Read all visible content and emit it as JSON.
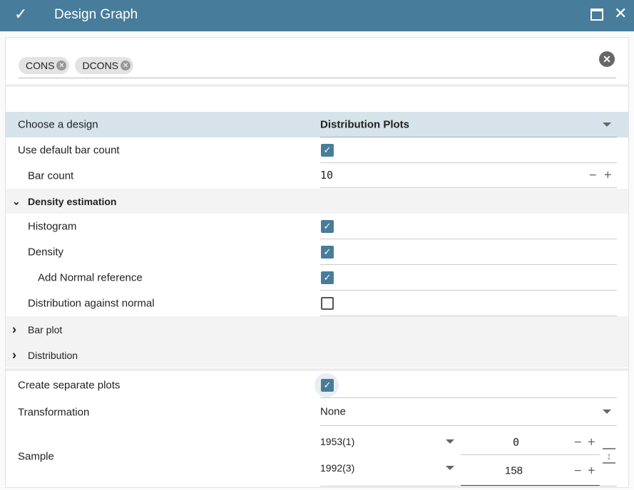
{
  "window": {
    "title": "Design Graph"
  },
  "tags": [
    "CONS",
    "DCONS"
  ],
  "design": {
    "label": "Choose a design",
    "value": "Distribution Plots"
  },
  "use_default_bar_count": {
    "label": "Use default bar count",
    "checked": true
  },
  "bar_count": {
    "label": "Bar count",
    "value": "10"
  },
  "density_section": {
    "label": "Density estimation",
    "expanded": true
  },
  "histogram": {
    "label": "Histogram",
    "checked": true
  },
  "density": {
    "label": "Density",
    "checked": true
  },
  "normal_ref": {
    "label": "Add Normal reference",
    "checked": true
  },
  "dist_normal": {
    "label": "Distribution against normal",
    "checked": false
  },
  "bar_plot": {
    "label": "Bar plot",
    "expanded": false
  },
  "distribution": {
    "label": "Distribution",
    "expanded": false
  },
  "separate": {
    "label": "Create separate plots",
    "checked": true
  },
  "transformation": {
    "label": "Transformation",
    "value": "None"
  },
  "sample": {
    "label": "Sample",
    "start": "1953(1)",
    "start_index": "0",
    "end": "1992(3)",
    "end_index": "158"
  },
  "icons": {
    "check": "✓",
    "close": "✕",
    "minus": "−",
    "plus": "+",
    "chev_down": "⌄",
    "chev_right": "›"
  },
  "colors": {
    "accent": "#487c9b",
    "selected_row": "#d6e3ea"
  }
}
